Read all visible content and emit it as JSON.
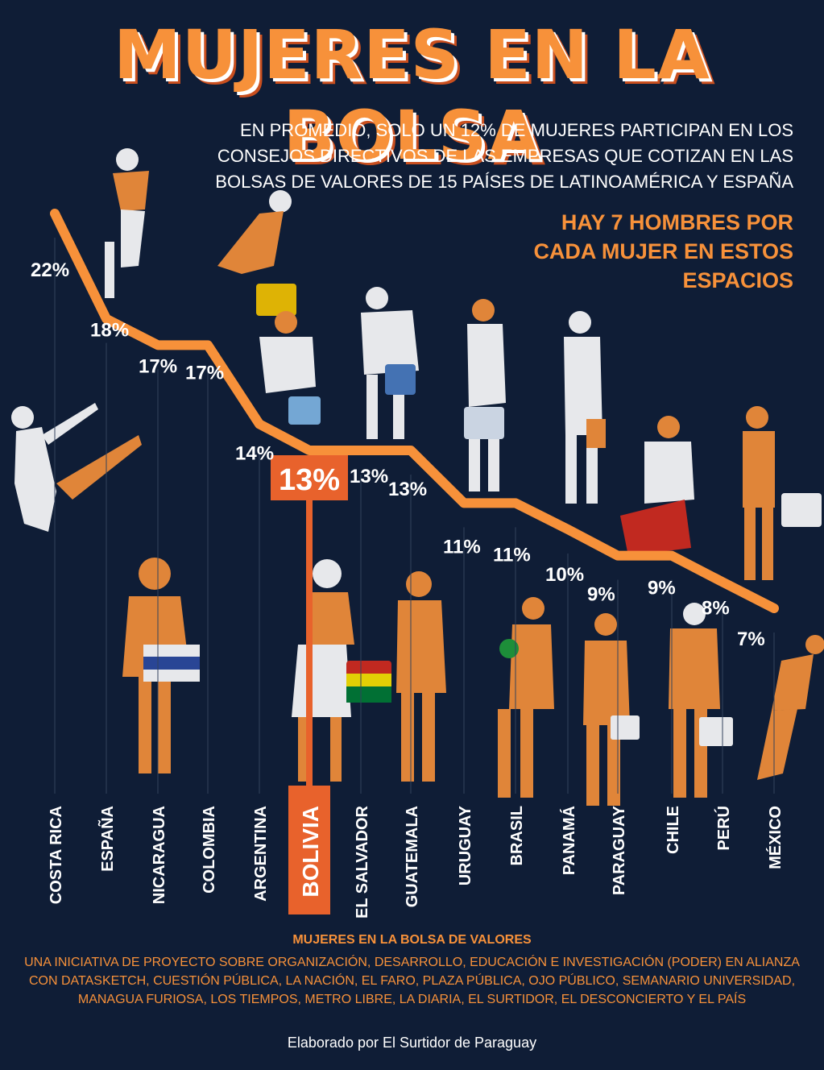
{
  "header": {
    "title": "MUJERES EN LA BOLSA",
    "subtitle": "En promedio, solo un 12% de mujeres participan en los consejos directivos de las empresas que cotizan en las bolsas de valores de 15 países de Latinoamérica y España",
    "ratio_note": "Hay 7 hombres por cada mujer en estos espacios"
  },
  "colors": {
    "background": "#0f1d36",
    "accent": "#f7913a",
    "highlight": "#e8622c",
    "text": "#ffffff",
    "guide": "#33425c"
  },
  "chart_data": {
    "type": "line",
    "categories": [
      "COSTA RICA",
      "ESPAÑA",
      "NICARAGUA",
      "COLOMBIA",
      "ARGENTINA",
      "BOLIVIA",
      "EL SALVADOR",
      "GUATEMALA",
      "URUGUAY",
      "BRASIL",
      "PANAMÁ",
      "PARAGUAY",
      "CHILE",
      "PERÚ",
      "MÉXICO"
    ],
    "values": [
      22,
      18,
      17,
      17,
      14,
      13,
      13,
      13,
      11,
      11,
      10,
      9,
      9,
      8,
      7
    ],
    "labels": [
      "22%",
      "18%",
      "17%",
      "17%",
      "14%",
      "13%",
      "13%",
      "13%",
      "11%",
      "11%",
      "10%",
      "9%",
      "9%",
      "8%",
      "7%"
    ],
    "highlight": "BOLIVIA",
    "average": 12,
    "ylim": [
      7,
      22
    ],
    "grid": false,
    "legend": "none"
  },
  "footer": {
    "heading": "MUJERES EN LA BOLSA DE VALORES",
    "credits": "Una iniciativa de Proyecto sobre Organización, Desarrollo, Educación e Investigación (PODER) en alianza con Datasketch, Cuestión Pública, La Nación, El Faro, Plaza Pública, Ojo Público, Semanario Universidad, Managua Furiosa, Los Tiempos, Metro Libre, La Diaria, El Surtidor, El Desconcierto y El País",
    "author": "Elaborado por El Surtidor de Paraguay"
  }
}
